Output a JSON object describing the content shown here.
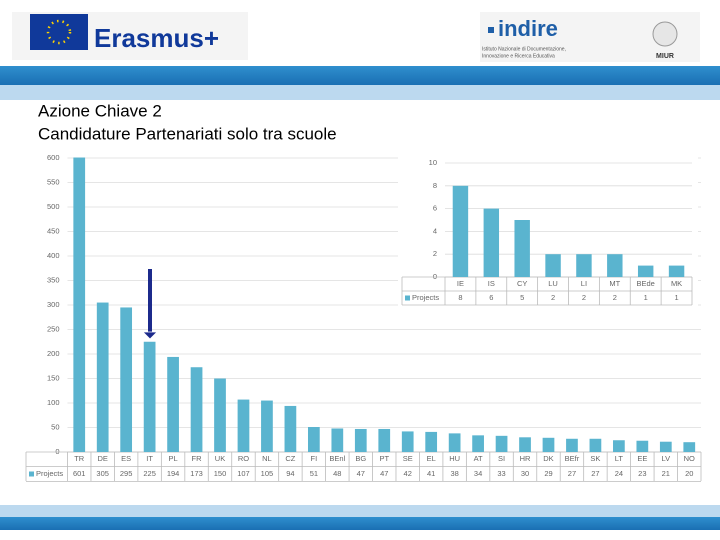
{
  "header": {
    "erasmus": "Erasmus+",
    "indire": "indire",
    "indire_subtitle": [
      "Istituto Nazionale di Documentazione,",
      "Innovazione e Ricerca Educativa"
    ],
    "miur": "MIUR"
  },
  "heading": [
    "Azione Chiave 2",
    "Candidature Partenariati solo tra scuole"
  ],
  "chart_data": [
    {
      "type": "bar",
      "categories": [
        "TR",
        "DE",
        "ES",
        "IT",
        "PL",
        "FR",
        "UK",
        "RO",
        "NL",
        "CZ",
        "FI",
        "BEnl",
        "BG",
        "PT",
        "SE",
        "EL",
        "HU",
        "AT",
        "SI",
        "HR",
        "DK",
        "BEfr",
        "SK",
        "LT",
        "EE",
        "LV",
        "NO"
      ],
      "series": [
        {
          "name": "Projects",
          "color": "#5ab4cf",
          "values": [
            601,
            305,
            295,
            225,
            194,
            173,
            150,
            107,
            105,
            94,
            51,
            48,
            47,
            47,
            42,
            41,
            38,
            34,
            33,
            30,
            29,
            27,
            27,
            24,
            23,
            21,
            20
          ]
        }
      ],
      "ylim": [
        0,
        600
      ],
      "yticks": [
        0,
        50,
        100,
        150,
        200,
        250,
        300,
        350,
        400,
        450,
        500,
        550,
        600
      ],
      "grid": true
    },
    {
      "type": "bar",
      "categories": [
        "IE",
        "IS",
        "CY",
        "LU",
        "LI",
        "MT",
        "BEde",
        "MK"
      ],
      "series": [
        {
          "name": "Projects",
          "color": "#5ab4cf",
          "values": [
            8,
            6,
            5,
            2,
            2,
            2,
            1,
            1
          ]
        }
      ],
      "ylim": [
        0,
        10
      ],
      "yticks": [
        0,
        2,
        4,
        6,
        8,
        10
      ],
      "grid": true
    }
  ]
}
